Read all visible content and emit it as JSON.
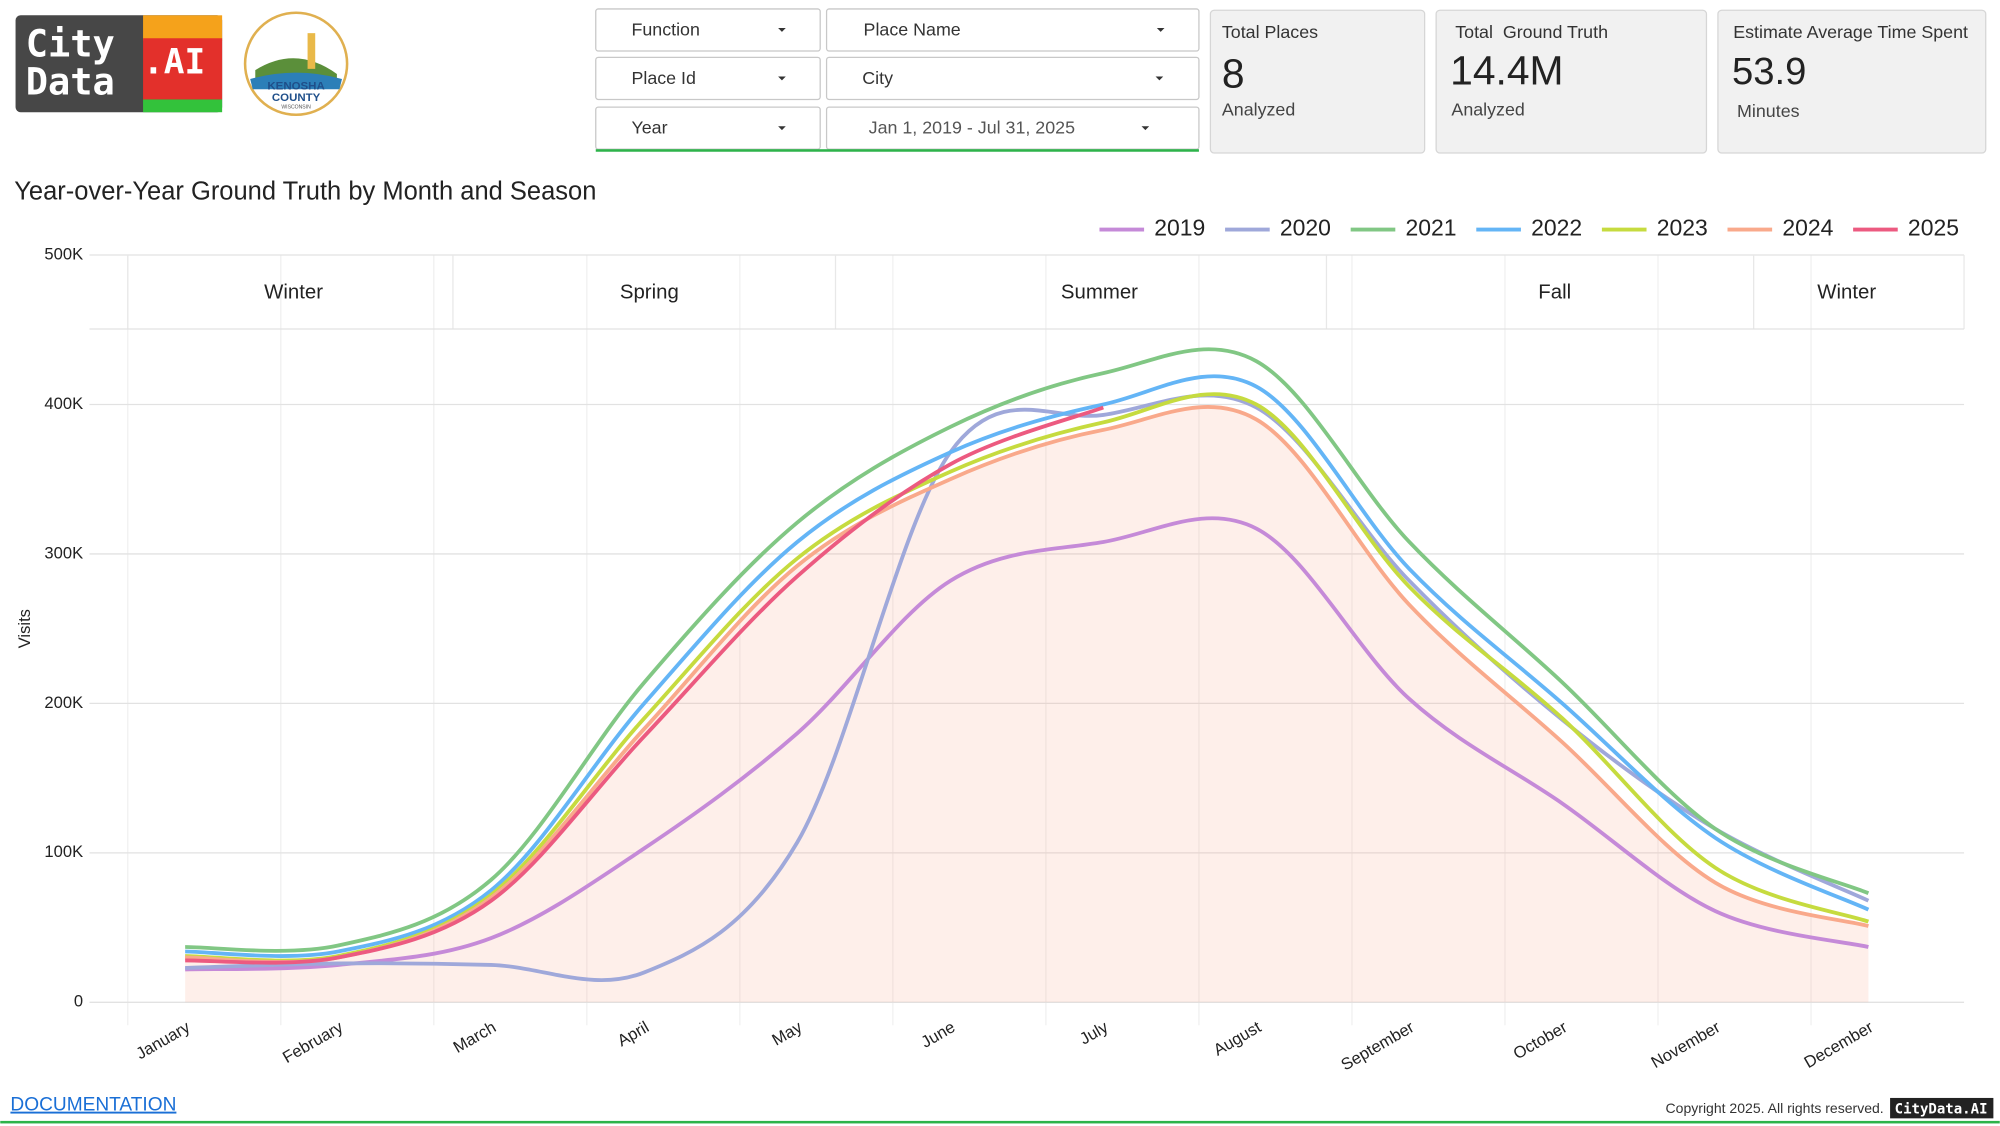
{
  "header": {
    "logo": [
      "City",
      "Data",
      ".AI"
    ],
    "county_logo": [
      "KENOSHA",
      "COUNTY",
      "WISCONSIN"
    ]
  },
  "filters": [
    "Function",
    "Place Name",
    "Place Id",
    "City",
    "Year",
    "Jan 1, 2019 - Jul 31, 2025"
  ],
  "kpis": [
    {
      "title": "Total Places",
      "value": "8",
      "note": "Analyzed"
    },
    {
      "title": "Total  Ground Truth",
      "value": "14.4M",
      "note": "Analyzed"
    },
    {
      "title": "Estimate Average Time Spent",
      "value": "53.9",
      "note": "Minutes"
    }
  ],
  "chart_data": {
    "type": "line",
    "title": "Year-over-Year Ground Truth by Month and Season",
    "y_label": "Visits",
    "seasons": [
      "Winter",
      "Spring",
      "Summer",
      "Fall",
      "Winter"
    ],
    "categories": [
      "January",
      "February",
      "March",
      "April",
      "May",
      "June",
      "July",
      "August",
      "September",
      "October",
      "November",
      "December"
    ],
    "ylim": [
      0,
      500000
    ],
    "yticks": [
      0,
      {
        "value": 100000,
        "label": "100K"
      },
      {
        "value": 200000,
        "label": "200K"
      },
      {
        "value": 300000,
        "label": "300K"
      },
      {
        "value": 400000,
        "label": "400K"
      },
      {
        "value": 500000,
        "label": "500K"
      }
    ],
    "grid": true,
    "legend": "top-right",
    "series": [
      {
        "name": "2019",
        "color": "#c58ad8",
        "values": [
          22000,
          25000,
          43000,
          103000,
          180000,
          282000,
          308000,
          317000,
          203000,
          133000,
          61000,
          37000
        ]
      },
      {
        "name": "2020",
        "color": "#9fa8da",
        "values": [
          23000,
          26000,
          25000,
          20000,
          107000,
          368000,
          393000,
          398000,
          282000,
          189000,
          116000,
          68000
        ]
      },
      {
        "name": "2021",
        "color": "#81c784",
        "values": [
          37000,
          38000,
          82000,
          214000,
          321000,
          385000,
          421000,
          429000,
          308000,
          214000,
          116000,
          73000
        ]
      },
      {
        "name": "2022",
        "color": "#64b5f6",
        "values": [
          34000,
          34000,
          75000,
          200000,
          308000,
          368000,
          400000,
          412000,
          290000,
          200000,
          110000,
          62000
        ]
      },
      {
        "name": "2023",
        "color": "#c6db3f",
        "values": [
          31000,
          31000,
          72000,
          190000,
          297000,
          355000,
          388000,
          400000,
          278000,
          190000,
          90000,
          54000
        ]
      },
      {
        "name": "2024",
        "color": "#f9a98b",
        "fill": true,
        "values": [
          30000,
          30000,
          70000,
          183000,
          292000,
          350000,
          383000,
          390000,
          266000,
          174000,
          80000,
          51000
        ]
      },
      {
        "name": "2025",
        "color": "#ec5a80",
        "values": [
          28000,
          30000,
          68000,
          178000,
          285000,
          360000,
          398000,
          null,
          null,
          null,
          null,
          null
        ]
      }
    ]
  },
  "footer": {
    "link": "DOCUMENTATION",
    "copyright": "Copyright 2025. All rights reserved.",
    "badge": "CityData.AI"
  }
}
